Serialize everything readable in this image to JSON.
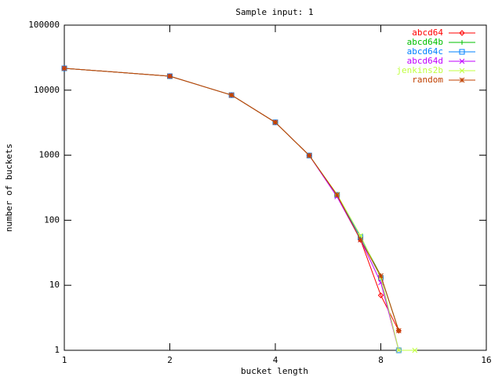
{
  "chart_data": {
    "type": "line",
    "title": "Sample input: 1",
    "xlabel": "bucket length",
    "ylabel": "number of buckets",
    "xscale": "log2",
    "yscale": "log10",
    "xlim": [
      1,
      16
    ],
    "xticks": [
      1,
      2,
      4,
      8,
      16
    ],
    "ylim": [
      1,
      100000
    ],
    "yticks": [
      1,
      10,
      100,
      1000,
      10000,
      100000
    ],
    "legend": "top-right",
    "x": [
      1,
      2,
      3,
      4,
      5,
      6,
      7,
      8,
      9,
      10
    ],
    "series": [
      {
        "name": "abcd64",
        "color": "#ff0000",
        "marker": "diamond",
        "values": [
          21700,
          16400,
          8400,
          3200,
          990,
          245,
          50,
          7,
          2,
          null
        ]
      },
      {
        "name": "abcd64b",
        "color": "#00c000",
        "marker": "plus",
        "values": [
          21700,
          16400,
          8400,
          3200,
          990,
          245,
          55,
          14,
          2,
          null
        ]
      },
      {
        "name": "abcd64c",
        "color": "#0080ff",
        "marker": "square",
        "values": [
          21700,
          16400,
          8400,
          3200,
          990,
          245,
          55,
          13,
          1,
          null
        ]
      },
      {
        "name": "abcd64d",
        "color": "#c000ff",
        "marker": "cross",
        "values": [
          21700,
          16400,
          8400,
          3200,
          990,
          230,
          50,
          11,
          1,
          null
        ]
      },
      {
        "name": "jenkins2b",
        "color": "#c0ff40",
        "marker": "asterisk",
        "values": [
          21700,
          16400,
          8400,
          3200,
          990,
          250,
          58,
          13,
          1,
          1
        ]
      },
      {
        "name": "random",
        "color": "#c04000",
        "marker": "star",
        "values": [
          21700,
          16400,
          8400,
          3200,
          990,
          245,
          50,
          14,
          2,
          null
        ]
      }
    ]
  }
}
